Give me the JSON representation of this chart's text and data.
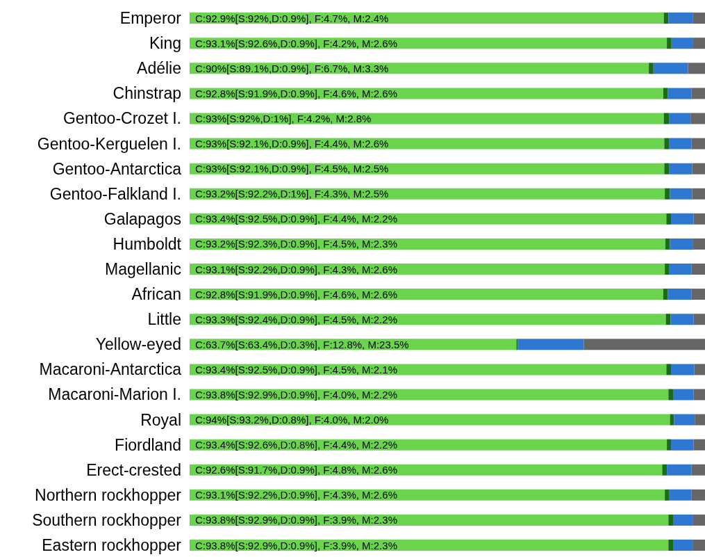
{
  "chart_data": {
    "type": "bar",
    "orientation": "horizontal",
    "stacked": true,
    "xlim": [
      0,
      100
    ],
    "tick_labels": "y",
    "grid": false,
    "legend": false,
    "categories": [
      "Emperor",
      "King",
      "Adélie",
      "Chinstrap",
      "Gentoo-Crozet I.",
      "Gentoo-Kerguelen I.",
      "Gentoo-Antarctica",
      "Gentoo-Falkland I.",
      "Galapagos",
      "Humboldt",
      "Magellanic",
      "African",
      "Little",
      "Yellow-eyed",
      "Macaroni-Antarctica",
      "Macaroni-Marion I.",
      "Royal",
      "Fiordland",
      "Erect-crested",
      "Northern rockhopper",
      "Southern rockhopper",
      "Eastern rockhopper"
    ],
    "series": [
      {
        "color": "#6bd44f",
        "values": [
          92,
          92.6,
          89.1,
          91.9,
          92,
          92.1,
          92.1,
          92.2,
          92.5,
          92.3,
          92.2,
          91.9,
          92.4,
          63.4,
          92.5,
          92.9,
          93.2,
          92.6,
          91.7,
          92.2,
          92.9,
          92.9
        ],
        "value_labels": [
          "C:92.9%[S:92%,D:0.9%], F:4.7%, M:2.4%",
          "C:93.1%[S:92.6%,D:0.9%], F:4.2%, M:2.6%",
          "C:90%[S:89.1%,D:0.9%], F:6.7%, M:3.3%",
          "C:92.8%[S:91.9%,D:0.9%], F:4.6%, M:2.6%",
          "C:93%[S:92%,D:1%], F:4.2%, M:2.8%",
          "C:93%[S:92.1%,D:0.9%], F:4.4%, M:2.6%",
          "C:93%[S:92.1%,D:0.9%], F:4.5%, M:2.5%",
          "C:93.2%[S:92.2%,D:1%], F:4.3%, M:2.5%",
          "C:93.4%[S:92.5%,D:0.9%], F:4.4%, M:2.2%",
          "C:93.2%[S:92.3%,D:0.9%], F:4.5%, M:2.3%",
          "C:93.1%[S:92.2%,D:0.9%], F:4.3%, M:2.6%",
          "C:92.8%[S:91.9%,D:0.9%], F:4.6%, M:2.6%",
          "C:93.3%[S:92.4%,D:0.9%], F:4.5%, M:2.2%",
          "C:63.7%[S:63.4%,D:0.3%], F:12.8%, M:23.5%",
          "C:93.4%[S:92.5%,D:0.9%], F:4.5%, M:2.1%",
          "C:93.8%[S:92.9%,D:0.9%], F:4.0%, M:2.2%",
          "C:94%[S:93.2%,D:0.8%], F:4.0%, M:2.0%",
          "C:93.4%[S:92.6%,D:0.8%], F:4.4%, M:2.2%",
          "C:92.6%[S:91.7%,D:0.9%], F:4.8%, M:2.6%",
          "C:93.1%[S:92.2%,D:0.9%], F:4.3%, M:2.6%",
          "C:93.8%[S:92.9%,D:0.9%], F:3.9%, M:2.3%",
          "C:93.8%[S:92.9%,D:0.9%], F:3.9%, M:2.3%"
        ]
      },
      {
        "color": "#1b6b1b",
        "values": [
          0.9,
          0.9,
          0.9,
          0.9,
          1,
          0.9,
          0.9,
          1,
          0.9,
          0.9,
          0.9,
          0.9,
          0.9,
          0.3,
          0.9,
          0.9,
          0.8,
          0.8,
          0.9,
          0.9,
          0.9,
          0.9
        ]
      },
      {
        "color": "#2f78d2",
        "values": [
          4.7,
          4.2,
          6.7,
          4.6,
          4.2,
          4.4,
          4.5,
          4.3,
          4.4,
          4.5,
          4.3,
          4.6,
          4.5,
          12.8,
          4.5,
          4.0,
          4.0,
          4.4,
          4.8,
          4.3,
          3.9,
          3.9
        ]
      },
      {
        "color": "#666666",
        "values": [
          2.4,
          2.6,
          3.3,
          2.6,
          2.8,
          2.6,
          2.5,
          2.5,
          2.2,
          2.3,
          2.6,
          2.6,
          2.2,
          23.5,
          2.1,
          2.2,
          2.0,
          2.2,
          2.6,
          2.6,
          2.3,
          2.3
        ]
      }
    ]
  }
}
